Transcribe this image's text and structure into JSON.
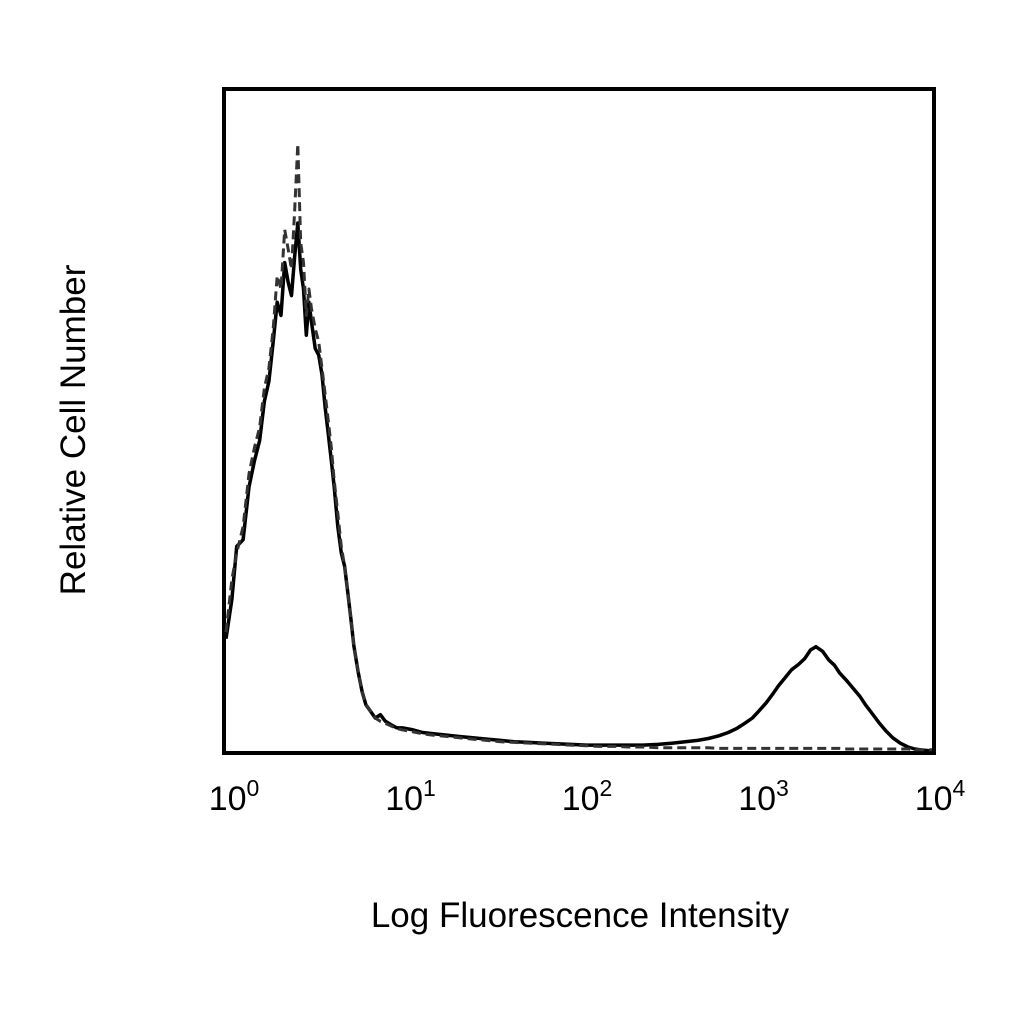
{
  "chart_data": {
    "type": "line",
    "xscale": "log",
    "xlim": [
      1,
      10000
    ],
    "ylim": [
      0,
      100
    ],
    "grid": false,
    "xlabel": "Log Fluorescence Intensity",
    "ylabel": "Relative Cell Number",
    "x_ticks": [
      {
        "base": "10",
        "exp": "0",
        "value": 1
      },
      {
        "base": "10",
        "exp": "1",
        "value": 10
      },
      {
        "base": "10",
        "exp": "2",
        "value": 100
      },
      {
        "base": "10",
        "exp": "3",
        "value": 1000
      },
      {
        "base": "10",
        "exp": "4",
        "value": 10000
      }
    ],
    "series": [
      {
        "style": "solid",
        "color": "#000000",
        "x": [
          1.0,
          1.08,
          1.15,
          1.25,
          1.35,
          1.45,
          1.55,
          1.65,
          1.75,
          1.85,
          1.95,
          2.05,
          2.15,
          2.25,
          2.35,
          2.45,
          2.55,
          2.65,
          2.75,
          2.85,
          2.95,
          3.05,
          3.2,
          3.35,
          3.5,
          3.65,
          3.8,
          3.95,
          4.1,
          4.3,
          4.5,
          4.7,
          4.9,
          5.1,
          5.3,
          5.6,
          5.9,
          6.2,
          6.6,
          7.0,
          7.5,
          8.0,
          8.6,
          9.3,
          10.0,
          11.5,
          13.0,
          15.0,
          18.0,
          21.0,
          25.0,
          30.0,
          36.0,
          43.0,
          52.0,
          62.0,
          75.0,
          90.0,
          110.0,
          130.0,
          160.0,
          190.0,
          230.0,
          280.0,
          340.0,
          400.0,
          470.0,
          540.0,
          620.0,
          700.0,
          780.0,
          870.0,
          960.0,
          1050.0,
          1150.0,
          1250.0,
          1350.0,
          1480.0,
          1600.0,
          1750.0,
          1900.0,
          2050.0,
          2200.0,
          2400.0,
          2600.0,
          2800.0,
          3000.0,
          3300.0,
          3600.0,
          3900.0,
          4200.0,
          4600.0,
          5000.0,
          5500.0,
          6000.0,
          6600.0,
          7300.0,
          8000.0,
          9000.0,
          10000.0
        ],
        "y": [
          17,
          23,
          31,
          32,
          40,
          44,
          47,
          53,
          56,
          62,
          68,
          66,
          74,
          71,
          69,
          75,
          80,
          73,
          70,
          63,
          68,
          65,
          61,
          60,
          57,
          52,
          48,
          44,
          40,
          34,
          30,
          28,
          24,
          20,
          16,
          12,
          9,
          7,
          6,
          5,
          5.5,
          4.5,
          4,
          3.5,
          3.5,
          3.2,
          2.8,
          2.6,
          2.4,
          2.2,
          2.0,
          1.8,
          1.6,
          1.4,
          1.3,
          1.2,
          1.1,
          1.0,
          0.9,
          0.9,
          0.9,
          0.9,
          0.9,
          1.0,
          1.2,
          1.4,
          1.6,
          1.9,
          2.3,
          2.8,
          3.4,
          4.2,
          5.0,
          6.1,
          7.3,
          8.6,
          9.9,
          11.2,
          12.3,
          13.1,
          14.0,
          15.3,
          15.8,
          15.1,
          13.8,
          13.0,
          11.8,
          10.6,
          9.4,
          8.3,
          7.0,
          5.6,
          4.3,
          3.0,
          2.0,
          1.2,
          0.6,
          0.3,
          0.1,
          0.0
        ]
      },
      {
        "style": "dashed",
        "color": "#333333",
        "x": [
          1.0,
          1.08,
          1.15,
          1.25,
          1.35,
          1.45,
          1.55,
          1.65,
          1.75,
          1.85,
          1.95,
          2.05,
          2.15,
          2.25,
          2.35,
          2.45,
          2.55,
          2.65,
          2.75,
          2.85,
          2.95,
          3.05,
          3.2,
          3.35,
          3.5,
          3.65,
          3.8,
          3.95,
          4.1,
          4.3,
          4.5,
          4.7,
          4.9,
          5.1,
          5.3,
          5.6,
          5.9,
          6.2,
          6.6,
          7.0,
          7.5,
          8.0,
          8.6,
          9.3,
          10.0,
          11.5,
          13.0,
          15.0,
          18.0,
          21.0,
          25.0,
          30.0,
          36.0,
          43.0,
          52.0,
          62.0,
          75.0,
          90.0,
          110.0,
          130.0,
          160.0,
          190.0,
          230.0,
          280.0,
          340.0,
          400.0,
          470.0,
          540.0,
          620.0,
          700.0,
          780.0,
          870.0,
          960.0,
          1050.0,
          1150.0,
          1250.0,
          1350.0,
          1480.0,
          1600.0,
          1750.0,
          1900.0,
          2050.0,
          2200.0,
          2400.0,
          2600.0,
          2800.0,
          3000.0,
          3300.0,
          3600.0,
          3900.0,
          4200.0,
          4600.0,
          5000.0,
          5500.0,
          6000.0,
          6600.0,
          7300.0,
          8000.0,
          9000.0,
          10000.0
        ],
        "y": [
          18,
          26,
          30,
          34,
          42,
          46,
          49,
          55,
          58,
          64,
          72,
          70,
          79,
          76,
          73,
          82,
          92,
          77,
          74,
          66,
          70,
          67,
          64,
          62,
          58,
          54,
          50,
          46,
          41,
          36,
          31,
          28,
          24,
          20,
          16,
          12,
          9,
          7,
          6,
          5,
          4.5,
          4.2,
          3.8,
          3.4,
          3.2,
          2.9,
          2.6,
          2.4,
          2.2,
          2.0,
          1.8,
          1.6,
          1.4,
          1.3,
          1.2,
          1.1,
          1.0,
          0.9,
          0.8,
          0.7,
          0.7,
          0.6,
          0.6,
          0.5,
          0.5,
          0.5,
          0.5,
          0.5,
          0.4,
          0.4,
          0.4,
          0.4,
          0.4,
          0.4,
          0.4,
          0.4,
          0.4,
          0.4,
          0.4,
          0.4,
          0.4,
          0.4,
          0.4,
          0.4,
          0.4,
          0.4,
          0.4,
          0.3,
          0.3,
          0.3,
          0.3,
          0.3,
          0.3,
          0.3,
          0.3,
          0.3,
          0.3,
          0.2,
          0.2,
          0.2
        ]
      }
    ]
  }
}
